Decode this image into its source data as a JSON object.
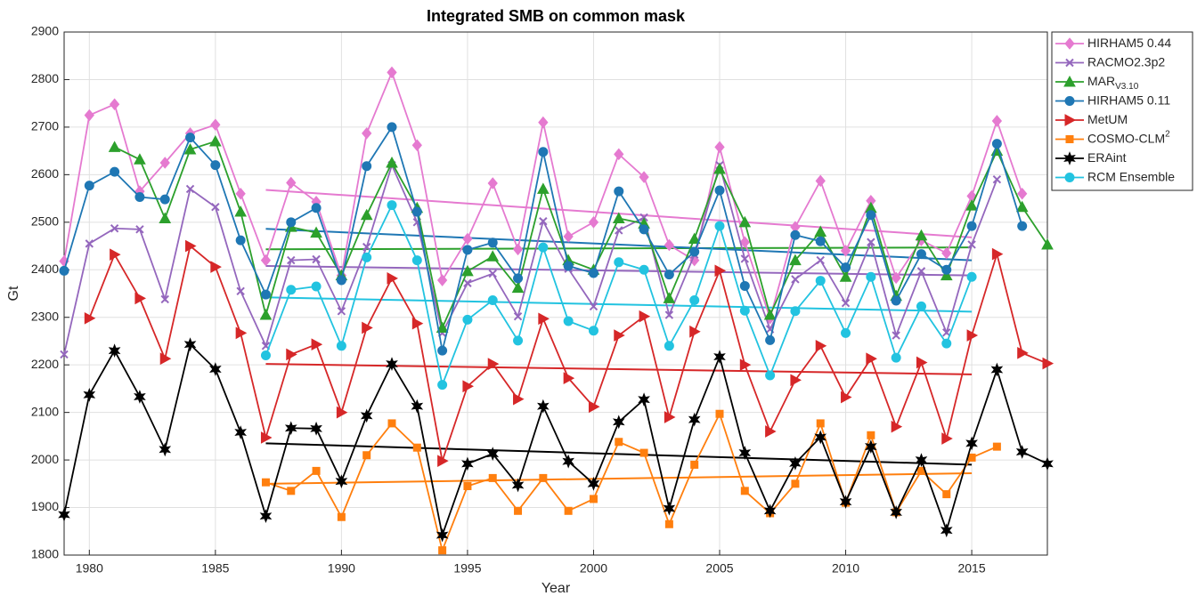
{
  "chart_data": {
    "type": "line",
    "title": "Integrated SMB on common mask",
    "x_label": "Year",
    "y_label": "Gt",
    "x": [
      1979,
      1980,
      1981,
      1982,
      1983,
      1984,
      1985,
      1986,
      1987,
      1988,
      1989,
      1990,
      1991,
      1992,
      1993,
      1994,
      1995,
      1996,
      1997,
      1998,
      1999,
      2000,
      2001,
      2002,
      2003,
      2004,
      2005,
      2006,
      2007,
      2008,
      2009,
      2010,
      2011,
      2012,
      2013,
      2014,
      2015,
      2016,
      2017,
      2018
    ],
    "xlim": [
      1979,
      2018
    ],
    "xticks": [
      1980,
      1985,
      1990,
      1995,
      2000,
      2005,
      2010,
      2015
    ],
    "ylim": [
      1800,
      2900
    ],
    "yticks": [
      1800,
      1900,
      2000,
      2100,
      2200,
      2300,
      2400,
      2500,
      2600,
      2700,
      2800,
      2900
    ],
    "grid": true,
    "legend": "outside-right",
    "series": [
      {
        "name": "HIRHAM5 0.44",
        "color": "#e57ad0",
        "marker": "diamond",
        "values": [
          2418,
          2725,
          2748,
          2565,
          2625,
          2687,
          2705,
          2560,
          2420,
          2583,
          2543,
          2388,
          2687,
          2815,
          2662,
          2378,
          2465,
          2582,
          2443,
          2710,
          2470,
          2500,
          2643,
          2595,
          2452,
          2420,
          2658,
          2458,
          2298,
          2490,
          2587,
          2440,
          2545,
          2383,
          2462,
          2435,
          2555,
          2713,
          2560,
          null
        ]
      },
      {
        "name": "RACMO2.3p2",
        "color": "#9467bd",
        "marker": "x",
        "values": [
          2222,
          2455,
          2487,
          2485,
          2338,
          2570,
          2532,
          2355,
          2240,
          2420,
          2422,
          2313,
          2448,
          2620,
          2500,
          2267,
          2372,
          2392,
          2302,
          2502,
          2402,
          2323,
          2483,
          2510,
          2305,
          2432,
          2620,
          2423,
          2275,
          2380,
          2420,
          2330,
          2458,
          2262,
          2397,
          2268,
          2453,
          2590,
          null,
          null
        ]
      },
      {
        "name": "MAR",
        "subscript": "V3.10",
        "color": "#2ca02c",
        "marker": "triangle-up",
        "values": [
          null,
          null,
          2658,
          2632,
          2508,
          2653,
          2670,
          2522,
          2305,
          2490,
          2478,
          2388,
          2515,
          2625,
          2530,
          2278,
          2397,
          2428,
          2362,
          2570,
          2420,
          2400,
          2508,
          2497,
          2340,
          2465,
          2612,
          2500,
          2305,
          2420,
          2480,
          2385,
          2530,
          2345,
          2472,
          2388,
          2535,
          2650,
          2532,
          2453
        ]
      },
      {
        "name": "HIRHAM5 0.11",
        "color": "#1f77b4",
        "marker": "circle",
        "values": [
          2398,
          2577,
          2606,
          2553,
          2548,
          2678,
          2620,
          2462,
          2348,
          2500,
          2530,
          2378,
          2618,
          2700,
          2522,
          2230,
          2442,
          2457,
          2382,
          2648,
          2408,
          2393,
          2565,
          2485,
          2390,
          2438,
          2567,
          2366,
          2252,
          2473,
          2460,
          2405,
          2515,
          2335,
          2433,
          2400,
          2492,
          2665,
          2492,
          null
        ]
      },
      {
        "name": "MetUM",
        "color": "#d62728",
        "marker": "triangle-right",
        "values": [
          null,
          2298,
          2432,
          2340,
          2213,
          2450,
          2406,
          2267,
          2047,
          2222,
          2243,
          2100,
          2278,
          2382,
          2287,
          1998,
          2155,
          2202,
          2128,
          2297,
          2172,
          2112,
          2262,
          2302,
          2090,
          2270,
          2398,
          2200,
          2060,
          2168,
          2240,
          2132,
          2213,
          2070,
          2205,
          2045,
          2262,
          2433,
          2225,
          2203
        ]
      },
      {
        "name": "COSMO-CLM",
        "superscript": "2",
        "color": "#ff7f0e",
        "marker": "square",
        "values": [
          null,
          null,
          null,
          null,
          null,
          null,
          null,
          null,
          1953,
          1935,
          1977,
          1880,
          2010,
          2077,
          2026,
          1810,
          1945,
          1962,
          1893,
          1962,
          1893,
          1918,
          2038,
          2015,
          1865,
          1990,
          2097,
          1935,
          1888,
          1950,
          2077,
          1910,
          2052,
          1890,
          1977,
          1928,
          2005,
          2028,
          null,
          null
        ]
      },
      {
        "name": "ERAint",
        "color": "#000000",
        "marker": "star",
        "values": [
          1885,
          2137,
          2230,
          2133,
          2022,
          2243,
          2191,
          2058,
          1882,
          2067,
          2066,
          1955,
          2093,
          2202,
          2113,
          1842,
          1992,
          2013,
          1947,
          2113,
          1997,
          1950,
          2080,
          2127,
          1898,
          2085,
          2217,
          2015,
          1893,
          1993,
          2048,
          1912,
          2028,
          1890,
          2000,
          1852,
          2035,
          2190,
          2017,
          1992
        ]
      },
      {
        "name": "RCM Ensemble",
        "color": "#22c3e0",
        "marker": "circle",
        "values": [
          null,
          null,
          null,
          null,
          null,
          null,
          null,
          null,
          2220,
          2358,
          2365,
          2240,
          2426,
          2536,
          2420,
          2158,
          2295,
          2336,
          2251,
          2447,
          2292,
          2272,
          2416,
          2400,
          2240,
          2336,
          2492,
          2314,
          2178,
          2313,
          2377,
          2267,
          2385,
          2215,
          2323,
          2245,
          2385,
          null,
          null,
          null
        ]
      }
    ],
    "trends": [
      {
        "color": "#e57ad0",
        "x": [
          1987,
          2015
        ],
        "values": [
          2568,
          2468
        ]
      },
      {
        "color": "#9467bd",
        "x": [
          1987,
          2015
        ],
        "values": [
          2408,
          2388
        ]
      },
      {
        "color": "#2ca02c",
        "x": [
          1987,
          2015
        ],
        "values": [
          2443,
          2447
        ]
      },
      {
        "color": "#1f77b4",
        "x": [
          1987,
          2015
        ],
        "values": [
          2486,
          2420
        ]
      },
      {
        "color": "#d62728",
        "x": [
          1987,
          2015
        ],
        "values": [
          2202,
          2180
        ]
      },
      {
        "color": "#ff7f0e",
        "x": [
          1987,
          2015
        ],
        "values": [
          1950,
          1972
        ]
      },
      {
        "color": "#000000",
        "x": [
          1987,
          2015
        ],
        "values": [
          2035,
          1990
        ]
      },
      {
        "color": "#22c3e0",
        "x": [
          1987,
          2015
        ],
        "values": [
          2342,
          2312
        ]
      }
    ]
  }
}
